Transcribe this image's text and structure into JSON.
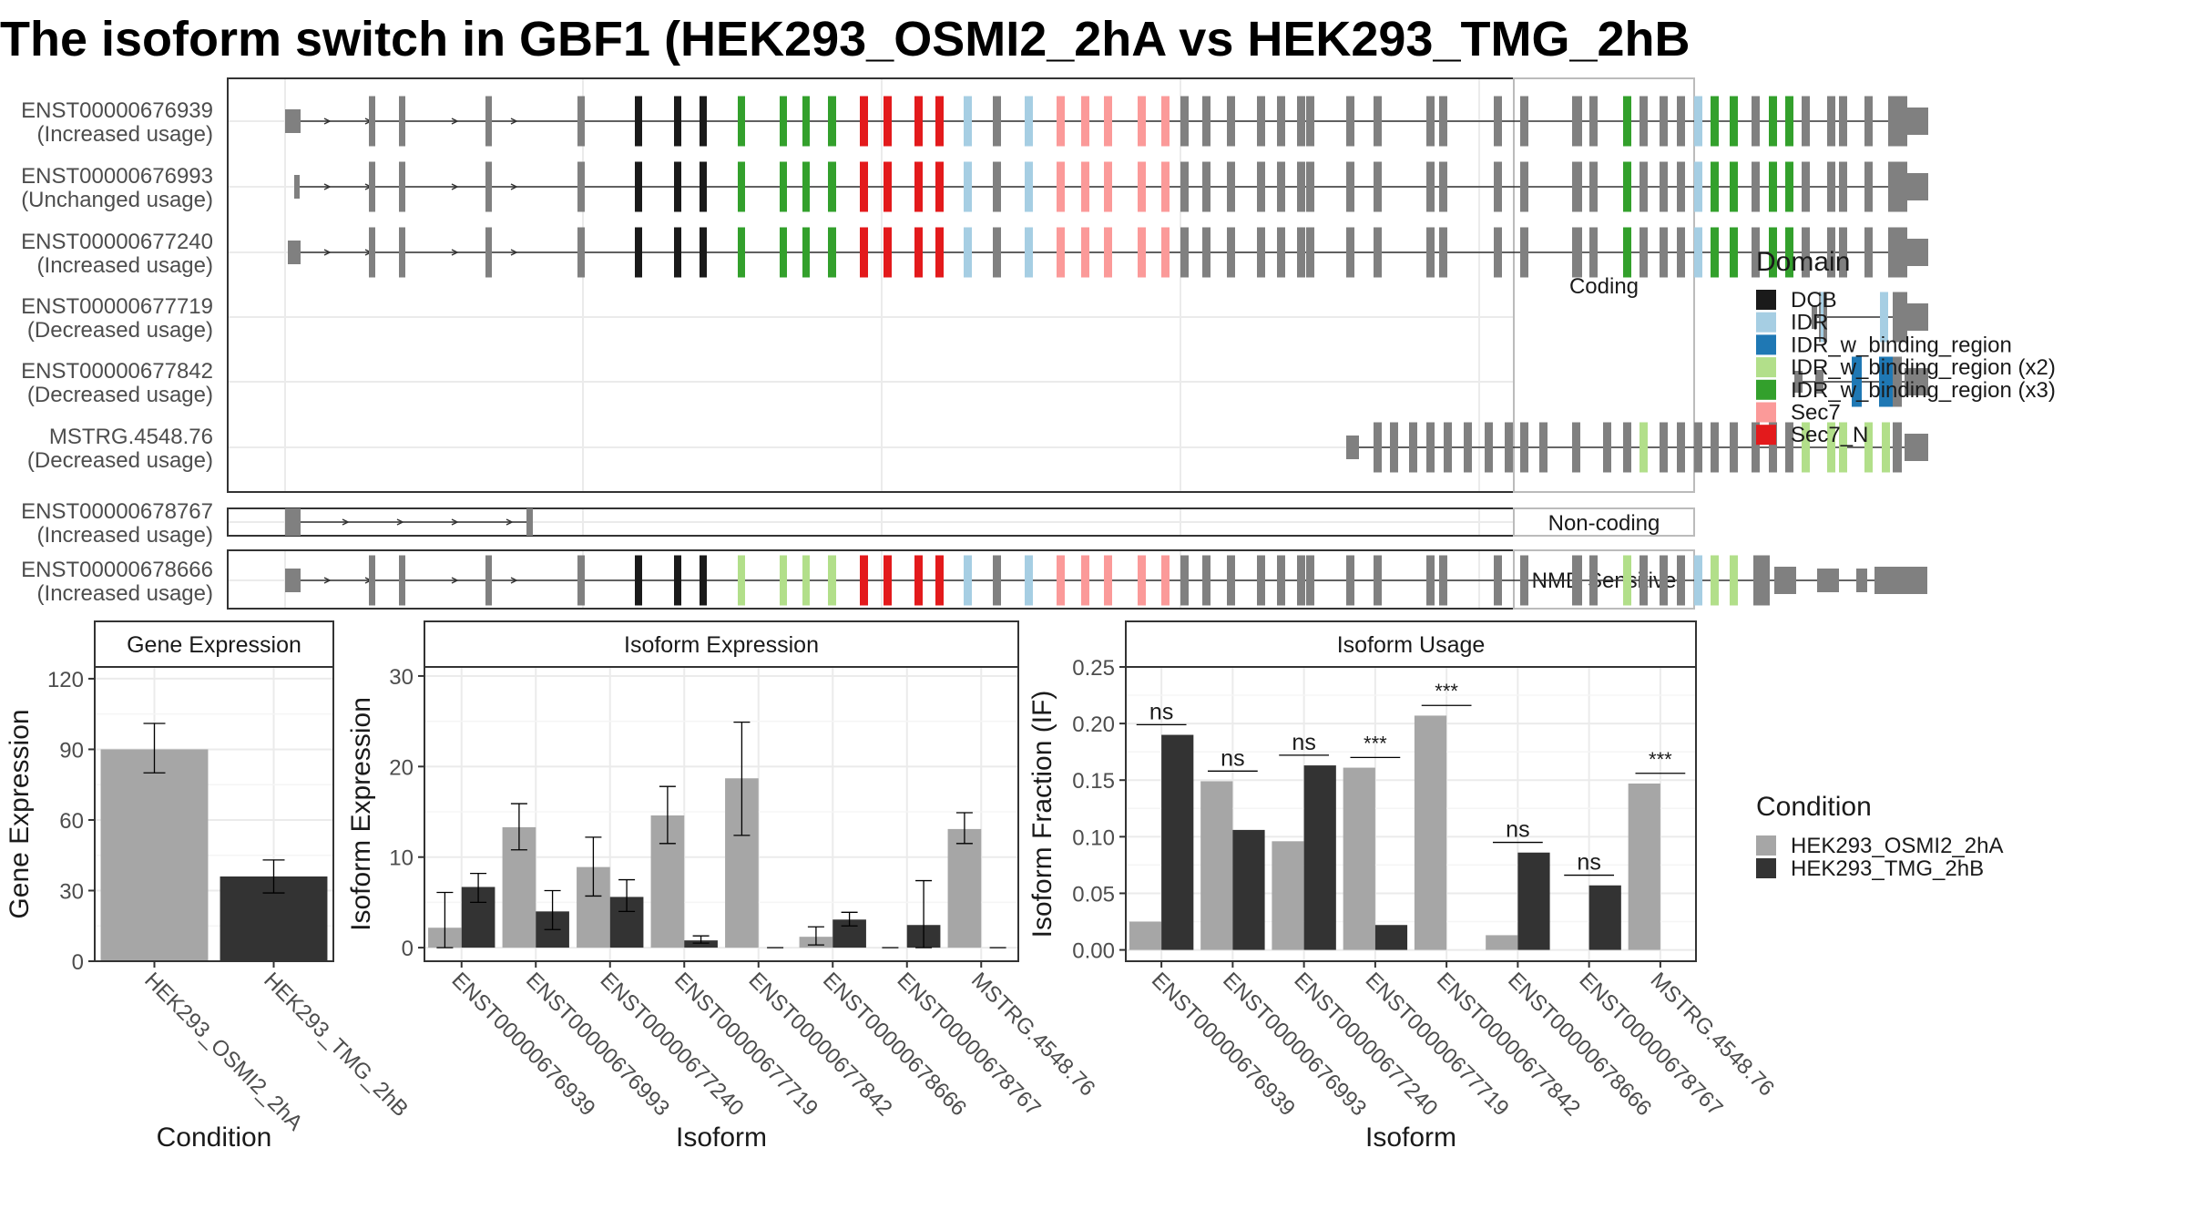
{
  "title": "The isoform switch in GBF1 (HEK293_OSMI2_2hA vs HEK293_TMG_2hB",
  "colors": {
    "DCB": "#1a1a1a",
    "IDR": "#a6cee3",
    "IDR_w_binding_region": "#1f78b4",
    "IDR_w_binding_region (x2)": "#b2df8a",
    "IDR_w_binding_region (x3)": "#33a02c",
    "Sec7": "#fb9a99",
    "Sec7_N": "#e31a1c",
    "none": "#808080",
    "cond1": "#a6a6a6",
    "cond2": "#333333"
  },
  "structure": {
    "facets": [
      {
        "label": "Coding",
        "rows": [
          {
            "name": "ENST00000676939",
            "usage": "(Increased usage)"
          },
          {
            "name": "ENST00000676993",
            "usage": "(Unchanged usage)"
          },
          {
            "name": "ENST00000677240",
            "usage": "(Increased usage)"
          },
          {
            "name": "ENST00000677719",
            "usage": "(Decreased usage)"
          },
          {
            "name": "ENST00000677842",
            "usage": "(Decreased usage)"
          },
          {
            "name": "MSTRG.4548.76",
            "usage": "(Decreased usage)"
          }
        ]
      },
      {
        "label": "Non-coding",
        "rows": [
          {
            "name": "ENST00000678767",
            "usage": "(Increased usage)"
          }
        ]
      },
      {
        "label": "NMD Sensitive",
        "rows": [
          {
            "name": "ENST00000678666",
            "usage": "(Increased usage)"
          }
        ]
      }
    ]
  },
  "legend_domain": {
    "title": "Domain",
    "items": [
      "DCB",
      "IDR",
      "IDR_w_binding_region",
      "IDR_w_binding_region (x2)",
      "IDR_w_binding_region (x3)",
      "Sec7",
      "Sec7_N"
    ]
  },
  "legend_condition": {
    "title": "Condition",
    "items": [
      "HEK293_OSMI2_2hA",
      "HEK293_TMG_2hB"
    ]
  },
  "chart_data": [
    {
      "type": "bar",
      "title": "Gene Expression",
      "xlabel": "Condition",
      "ylabel": "Gene Expression",
      "ylim": [
        0,
        125
      ],
      "yticks": [
        0,
        30,
        60,
        90,
        120
      ],
      "categories": [
        "HEK293_OSMI2_2hA",
        "HEK293_TMG_2hB"
      ],
      "values": [
        90,
        36
      ],
      "err_low": [
        80,
        29
      ],
      "err_high": [
        101,
        43
      ]
    },
    {
      "type": "bar",
      "title": "Isoform Expression",
      "xlabel": "Isoform",
      "ylabel": "Isoform Expression",
      "ylim": [
        -1.5,
        31
      ],
      "yticks": [
        0,
        10,
        20,
        30
      ],
      "categories": [
        "ENST00000676939",
        "ENST00000676993",
        "ENST00000677240",
        "ENST00000677719",
        "ENST00000677842",
        "ENST00000678666",
        "ENST00000678767",
        "MSTRG.4548.76"
      ],
      "series": [
        {
          "name": "HEK293_OSMI2_2hA",
          "values": [
            2.2,
            13.3,
            8.9,
            14.6,
            18.7,
            1.2,
            0,
            13.1
          ],
          "err_low": [
            0,
            10.8,
            5.7,
            11.5,
            12.4,
            0.3,
            0,
            11.5
          ],
          "err_high": [
            6.1,
            15.9,
            12.2,
            17.8,
            24.9,
            2.3,
            0,
            14.9
          ]
        },
        {
          "name": "HEK293_TMG_2hB",
          "values": [
            6.7,
            4.0,
            5.6,
            0.8,
            0,
            3.1,
            2.5,
            0
          ],
          "err_low": [
            5.0,
            2.0,
            4.0,
            0.5,
            0,
            2.4,
            0,
            0
          ],
          "err_high": [
            8.2,
            6.3,
            7.5,
            1.3,
            0,
            3.9,
            7.4,
            0
          ]
        }
      ]
    },
    {
      "type": "bar",
      "title": "Isoform Usage",
      "xlabel": "Isoform",
      "ylabel": "Isoform Fraction (IF)",
      "ylim": [
        -0.01,
        0.25
      ],
      "yticks": [
        0,
        0.05,
        0.1,
        0.15,
        0.2,
        0.25
      ],
      "ytick_labels": [
        "0.00",
        "0.05",
        "0.10",
        "0.15",
        "0.20",
        "0.25"
      ],
      "categories": [
        "ENST00000676939",
        "ENST00000676993",
        "ENST00000677240",
        "ENST00000677719",
        "ENST00000677842",
        "ENST00000678666",
        "ENST00000678767",
        "MSTRG.4548.76"
      ],
      "series": [
        {
          "name": "HEK293_OSMI2_2hA",
          "values": [
            0.025,
            0.149,
            0.096,
            0.161,
            0.207,
            0.013,
            0,
            0.147
          ]
        },
        {
          "name": "HEK293_TMG_2hB",
          "values": [
            0.19,
            0.106,
            0.163,
            0.022,
            0,
            0.086,
            0.057,
            0
          ]
        }
      ],
      "significance": [
        {
          "label": "ns",
          "y": 0.199
        },
        {
          "label": "ns",
          "y": 0.158
        },
        {
          "label": "ns",
          "y": 0.172
        },
        {
          "label": "***",
          "y": 0.17
        },
        {
          "label": "***",
          "y": 0.216
        },
        {
          "label": "ns",
          "y": 0.095
        },
        {
          "label": "ns",
          "y": 0.066
        },
        {
          "label": "***",
          "y": 0.156
        }
      ]
    }
  ]
}
